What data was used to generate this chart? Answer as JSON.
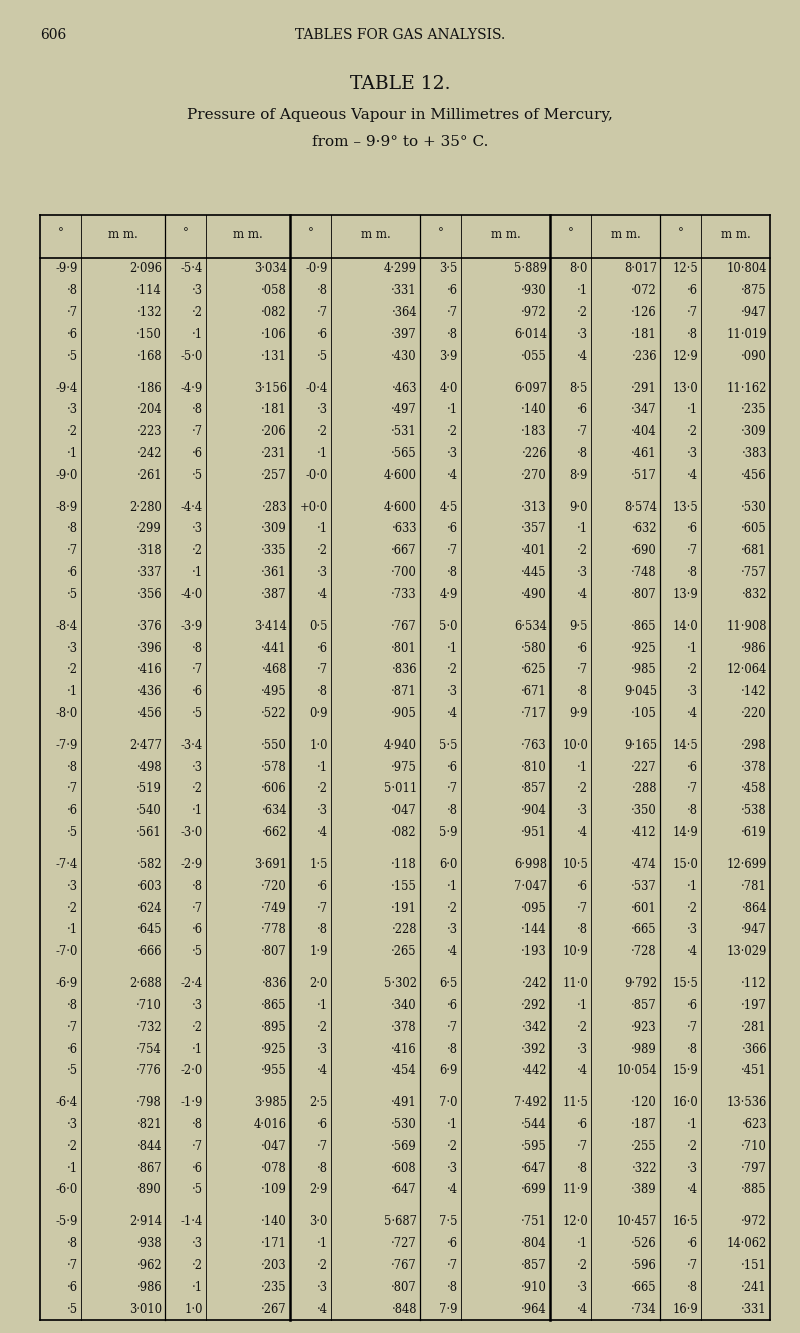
{
  "page_number": "606",
  "header_line1": "TABLES FOR GAS ANALYSIS.",
  "table_title": "TABLE 12.",
  "subtitle_line1": "Pressure of Aqueous Vapour in Millimetres of Mercury,",
  "subtitle_line2": "from – 9·9° to + 35° C.",
  "col_headers": [
    "°",
    "m m.",
    "°",
    "m m.",
    "°",
    "m m.",
    "°",
    "m m.",
    "°",
    "m m.",
    "°",
    "m m."
  ],
  "background_color": "#ccc9a8",
  "text_color": "#111111",
  "rows": [
    [
      "-9·9",
      "2·096",
      "-5·4",
      "3·034",
      "-0·9",
      "4·299",
      "3·5",
      "5·889",
      "8·0",
      "8·017",
      "12·5",
      "10·804"
    ],
    [
      "·8",
      "·114",
      "·3",
      "·058",
      "·8",
      "·331",
      "·6",
      "·930",
      "·1",
      "·072",
      "·6",
      "·875"
    ],
    [
      "·7",
      "·132",
      "·2",
      "·082",
      "·7",
      "·364",
      "·7",
      "·972",
      "·2",
      "·126",
      "·7",
      "·947"
    ],
    [
      "·6",
      "·150",
      "·1",
      "·106",
      "·6",
      "·397",
      "·8",
      "6·014",
      "·3",
      "·181",
      "·8",
      "11·019"
    ],
    [
      "·5",
      "·168",
      "-5·0",
      "·131",
      "·5",
      "·430",
      "3·9",
      "·055",
      "·4",
      "·236",
      "12·9",
      "·090"
    ],
    [
      "",
      "",
      "",
      "",
      "",
      "",
      "",
      "",
      "",
      "",
      "",
      ""
    ],
    [
      "-9·4",
      "·186",
      "-4·9",
      "3·156",
      "-0·4",
      "·463",
      "4·0",
      "6·097",
      "8·5",
      "·291",
      "13·0",
      "11·162"
    ],
    [
      "·3",
      "·204",
      "·8",
      "·181",
      "·3",
      "·497",
      "·1",
      "·140",
      "·6",
      "·347",
      "·1",
      "·235"
    ],
    [
      "·2",
      "·223",
      "·7",
      "·206",
      "·2",
      "·531",
      "·2",
      "·183",
      "·7",
      "·404",
      "·2",
      "·309"
    ],
    [
      "·1",
      "·242",
      "·6",
      "·231",
      "·1",
      "·565",
      "·3",
      "·226",
      "·8",
      "·461",
      "·3",
      "·383"
    ],
    [
      "-9·0",
      "·261",
      "·5",
      "·257",
      "-0·0",
      "4·600",
      "·4",
      "·270",
      "8·9",
      "·517",
      "·4",
      "·456"
    ],
    [
      "",
      "",
      "",
      "",
      "",
      "",
      "",
      "",
      "",
      "",
      "",
      ""
    ],
    [
      "-8·9",
      "2·280",
      "-4·4",
      "·283",
      "+0·0",
      "4·600",
      "4·5",
      "·313",
      "9·0",
      "8·574",
      "13·5",
      "·530"
    ],
    [
      "·8",
      "·299",
      "·3",
      "·309",
      "·1",
      "·633",
      "·6",
      "·357",
      "·1",
      "·632",
      "·6",
      "·605"
    ],
    [
      "·7",
      "·318",
      "·2",
      "·335",
      "·2",
      "·667",
      "·7",
      "·401",
      "·2",
      "·690",
      "·7",
      "·681"
    ],
    [
      "·6",
      "·337",
      "·1",
      "·361",
      "·3",
      "·700",
      "·8",
      "·445",
      "·3",
      "·748",
      "·8",
      "·757"
    ],
    [
      "·5",
      "·356",
      "-4·0",
      "·387",
      "·4",
      "·733",
      "4·9",
      "·490",
      "·4",
      "·807",
      "13·9",
      "·832"
    ],
    [
      "",
      "",
      "",
      "",
      "",
      "",
      "",
      "",
      "",
      "",
      "",
      ""
    ],
    [
      "-8·4",
      "·376",
      "-3·9",
      "3·414",
      "0·5",
      "·767",
      "5·0",
      "6·534",
      "9·5",
      "·865",
      "14·0",
      "11·908"
    ],
    [
      "·3",
      "·396",
      "·8",
      "·441",
      "·6",
      "·801",
      "·1",
      "·580",
      "·6",
      "·925",
      "·1",
      "·986"
    ],
    [
      "·2",
      "·416",
      "·7",
      "·468",
      "·7",
      "·836",
      "·2",
      "·625",
      "·7",
      "·985",
      "·2",
      "12·064"
    ],
    [
      "·1",
      "·436",
      "·6",
      "·495",
      "·8",
      "·871",
      "·3",
      "·671",
      "·8",
      "9·045",
      "·3",
      "·142"
    ],
    [
      "-8·0",
      "·456",
      "·5",
      "·522",
      "0·9",
      "·905",
      "·4",
      "·717",
      "9·9",
      "·105",
      "·4",
      "·220"
    ],
    [
      "",
      "",
      "",
      "",
      "",
      "",
      "",
      "",
      "",
      "",
      "",
      ""
    ],
    [
      "-7·9",
      "2·477",
      "-3·4",
      "·550",
      "1·0",
      "4·940",
      "5·5",
      "·763",
      "10·0",
      "9·165",
      "14·5",
      "·298"
    ],
    [
      "·8",
      "·498",
      "·3",
      "·578",
      "·1",
      "·975",
      "·6",
      "·810",
      "·1",
      "·227",
      "·6",
      "·378"
    ],
    [
      "·7",
      "·519",
      "·2",
      "·606",
      "·2",
      "5·011",
      "·7",
      "·857",
      "·2",
      "·288",
      "·7",
      "·458"
    ],
    [
      "·6",
      "·540",
      "·1",
      "·634",
      "·3",
      "·047",
      "·8",
      "·904",
      "·3",
      "·350",
      "·8",
      "·538"
    ],
    [
      "·5",
      "·561",
      "-3·0",
      "·662",
      "·4",
      "·082",
      "5·9",
      "·951",
      "·4",
      "·412",
      "14·9",
      "·619"
    ],
    [
      "",
      "",
      "",
      "",
      "",
      "",
      "",
      "",
      "",
      "",
      "",
      ""
    ],
    [
      "-7·4",
      "·582",
      "-2·9",
      "3·691",
      "1·5",
      "·118",
      "6·0",
      "6·998",
      "10·5",
      "·474",
      "15·0",
      "12·699"
    ],
    [
      "·3",
      "·603",
      "·8",
      "·720",
      "·6",
      "·155",
      "·1",
      "7·047",
      "·6",
      "·537",
      "·1",
      "·781"
    ],
    [
      "·2",
      "·624",
      "·7",
      "·749",
      "·7",
      "·191",
      "·2",
      "·095",
      "·7",
      "·601",
      "·2",
      "·864"
    ],
    [
      "·1",
      "·645",
      "·6",
      "·778",
      "·8",
      "·228",
      "·3",
      "·144",
      "·8",
      "·665",
      "·3",
      "·947"
    ],
    [
      "-7·0",
      "·666",
      "·5",
      "·807",
      "1·9",
      "·265",
      "·4",
      "·193",
      "10·9",
      "·728",
      "·4",
      "13·029"
    ],
    [
      "",
      "",
      "",
      "",
      "",
      "",
      "",
      "",
      "",
      "",
      "",
      ""
    ],
    [
      "-6·9",
      "2·688",
      "-2·4",
      "·836",
      "2·0",
      "5·302",
      "6·5",
      "·242",
      "11·0",
      "9·792",
      "15·5",
      "·112"
    ],
    [
      "·8",
      "·710",
      "·3",
      "·865",
      "·1",
      "·340",
      "·6",
      "·292",
      "·1",
      "·857",
      "·6",
      "·197"
    ],
    [
      "·7",
      "·732",
      "·2",
      "·895",
      "·2",
      "·378",
      "·7",
      "·342",
      "·2",
      "·923",
      "·7",
      "·281"
    ],
    [
      "·6",
      "·754",
      "·1",
      "·925",
      "·3",
      "·416",
      "·8",
      "·392",
      "·3",
      "·989",
      "·8",
      "·366"
    ],
    [
      "·5",
      "·776",
      "-2·0",
      "·955",
      "·4",
      "·454",
      "6·9",
      "·442",
      "·4",
      "10·054",
      "15·9",
      "·451"
    ],
    [
      "",
      "",
      "",
      "",
      "",
      "",
      "",
      "",
      "",
      "",
      "",
      ""
    ],
    [
      "-6·4",
      "·798",
      "-1·9",
      "3·985",
      "2·5",
      "·491",
      "7·0",
      "7·492",
      "11·5",
      "·120",
      "16·0",
      "13·536"
    ],
    [
      "·3",
      "·821",
      "·8",
      "4·016",
      "·6",
      "·530",
      "·1",
      "·544",
      "·6",
      "·187",
      "·1",
      "·623"
    ],
    [
      "·2",
      "·844",
      "·7",
      "·047",
      "·7",
      "·569",
      "·2",
      "·595",
      "·7",
      "·255",
      "·2",
      "·710"
    ],
    [
      "·1",
      "·867",
      "·6",
      "·078",
      "·8",
      "·608",
      "·3",
      "·647",
      "·8",
      "·322",
      "·3",
      "·797"
    ],
    [
      "-6·0",
      "·890",
      "·5",
      "·109",
      "2·9",
      "·647",
      "·4",
      "·699",
      "11·9",
      "·389",
      "·4",
      "·885"
    ],
    [
      "",
      "",
      "",
      "",
      "",
      "",
      "",
      "",
      "",
      "",
      "",
      ""
    ],
    [
      "-5·9",
      "2·914",
      "-1·4",
      "·140",
      "3·0",
      "5·687",
      "7·5",
      "·751",
      "12·0",
      "10·457",
      "16·5",
      "·972"
    ],
    [
      "·8",
      "·938",
      "·3",
      "·171",
      "·1",
      "·727",
      "·6",
      "·804",
      "·1",
      "·526",
      "·6",
      "14·062"
    ],
    [
      "·7",
      "·962",
      "·2",
      "·203",
      "·2",
      "·767",
      "·7",
      "·857",
      "·2",
      "·596",
      "·7",
      "·151"
    ],
    [
      "·6",
      "·986",
      "·1",
      "·235",
      "·3",
      "·807",
      "·8",
      "·910",
      "·3",
      "·665",
      "·8",
      "·241"
    ],
    [
      "·5",
      "3·010",
      "1·0",
      "·267",
      "·4",
      "·848",
      "7·9",
      "·964",
      "·4",
      "·734",
      "16·9",
      "·331"
    ]
  ]
}
